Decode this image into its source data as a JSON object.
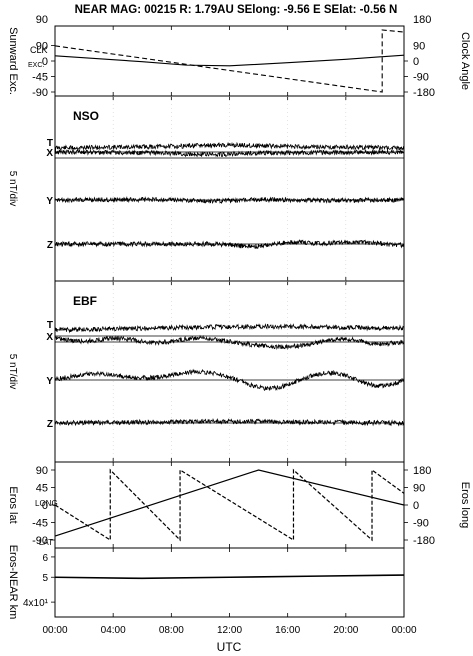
{
  "header": {
    "title": "NEAR MAG: 00215  R: 1.79AU  SElong:   -9.56 E  SElat:   -0.56 N"
  },
  "xaxis": {
    "label": "UTC",
    "ticks": [
      "00:00",
      "04:00",
      "08:00",
      "12:00",
      "16:00",
      "20:00",
      "00:00"
    ]
  },
  "panels": {
    "sunward": {
      "left_label": "Sunward Exc.",
      "right_label": "Clock Angle",
      "left_ticks": [
        "90",
        "45",
        "0",
        "-45",
        "-90"
      ],
      "right_ticks": [
        "180",
        "90",
        "0",
        "-90",
        "-180"
      ],
      "trace_labels": [
        "CLK",
        "EXC."
      ]
    },
    "nso": {
      "title": "NSO",
      "ylabel": "5 nT/div",
      "trace_labels": [
        "T",
        "X",
        "Y",
        "Z"
      ]
    },
    "ebf": {
      "title": "EBF",
      "ylabel": "5 nT/div",
      "trace_labels": [
        "T",
        "X",
        "Y",
        "Z"
      ]
    },
    "eros": {
      "left_label": "Eros lat",
      "right_label": "Eros long",
      "left_ticks": [
        "90",
        "45",
        "0",
        "-45",
        "-90"
      ],
      "right_ticks": [
        "180",
        "90",
        "0",
        "-90",
        "-180"
      ],
      "trace_labels": [
        "LONG",
        "LAT"
      ]
    },
    "distance": {
      "left_label": "Eros-NEAR km",
      "ticks": [
        "6",
        "5",
        "4x10¹"
      ]
    }
  },
  "chart_data": [
    {
      "type": "line",
      "title": "",
      "xlabel": "UTC",
      "xlim_hours": [
        0,
        24
      ],
      "y_left": {
        "label": "Sunward Exc.",
        "lim": [
          -90,
          90
        ]
      },
      "y_right": {
        "label": "Clock Angle",
        "lim": [
          -180,
          180
        ]
      },
      "series": [
        {
          "name": "CLK",
          "axis": "right",
          "style": "dashed",
          "x": [
            0,
            22.5,
            22.5,
            24
          ],
          "y": [
            88,
            -180,
            180,
            168
          ]
        },
        {
          "name": "EXC.",
          "axis": "left",
          "x": [
            0,
            6,
            9,
            12,
            16,
            20,
            24
          ],
          "y": [
            15,
            -2,
            -12,
            -14,
            -5,
            5,
            17
          ]
        }
      ]
    },
    {
      "type": "line",
      "title": "NSO",
      "ylabel": "5 nT/div",
      "xlim_hours": [
        0,
        24
      ],
      "series": [
        {
          "name": "T",
          "x": [
            0,
            8,
            12,
            16,
            24
          ],
          "y": [
            0,
            0.5,
            1.0,
            0.5,
            0
          ]
        },
        {
          "name": "X",
          "x": [
            0,
            8,
            10,
            14,
            18,
            24
          ],
          "y": [
            0,
            -0.3,
            -1.0,
            -0.2,
            -0.2,
            0
          ]
        },
        {
          "name": "Y",
          "x": [
            0,
            8,
            11,
            14,
            18,
            24
          ],
          "y": [
            0,
            0.2,
            -0.5,
            0.3,
            -0.2,
            0.1
          ]
        },
        {
          "name": "Z",
          "x": [
            0,
            12,
            14,
            16,
            18,
            20,
            24
          ],
          "y": [
            0,
            0,
            -1.5,
            1.5,
            -0.5,
            1.0,
            -0.5
          ]
        }
      ]
    },
    {
      "type": "line",
      "title": "EBF",
      "ylabel": "5 nT/div",
      "xlim_hours": [
        0,
        24
      ],
      "series": [
        {
          "name": "T",
          "x": [
            0,
            6,
            12,
            16,
            24
          ],
          "y": [
            0,
            0.5,
            1.0,
            1.0,
            0.5
          ]
        },
        {
          "name": "X",
          "x": [
            0,
            1.5,
            4,
            7,
            10,
            13,
            16.5,
            20,
            22.5,
            24
          ],
          "y": [
            0,
            -2.5,
            0,
            -2.5,
            0,
            -2.5,
            -3.5,
            0,
            -3.5,
            -1
          ]
        },
        {
          "name": "Y",
          "x": [
            0,
            3,
            6,
            10,
            12,
            15,
            17,
            20,
            22,
            24
          ],
          "y": [
            0,
            2.5,
            0,
            3,
            1,
            -4,
            1,
            3,
            -4,
            1
          ]
        },
        {
          "name": "Z",
          "x": [
            0,
            12,
            24
          ],
          "y": [
            0,
            0.5,
            0
          ]
        }
      ]
    },
    {
      "type": "line",
      "title": "",
      "xlim_hours": [
        0,
        24
      ],
      "y_left": {
        "label": "Eros lat",
        "lim": [
          -90,
          90
        ]
      },
      "y_right": {
        "label": "Eros long",
        "lim": [
          -180,
          180
        ]
      },
      "series": [
        {
          "name": "LAT",
          "axis": "left",
          "x": [
            0,
            14,
            24
          ],
          "y": [
            -80,
            90,
            0
          ]
        },
        {
          "name": "LONG",
          "axis": "right",
          "style": "dashed",
          "x": [
            0,
            3.8,
            3.8,
            8.6,
            8.6,
            16.4,
            16.4,
            21.8,
            21.8,
            24
          ],
          "y": [
            0,
            -180,
            180,
            -180,
            180,
            -180,
            180,
            -180,
            180,
            60
          ]
        }
      ]
    },
    {
      "type": "line",
      "title": "",
      "xlim_hours": [
        0,
        24
      ],
      "y": {
        "label": "Eros-NEAR km",
        "scale": "log",
        "lim": [
          35,
          65
        ]
      },
      "series": [
        {
          "name": "Eros-NEAR km",
          "x": [
            0,
            6,
            12,
            18,
            24
          ],
          "y": [
            50,
            49.5,
            50,
            50.5,
            51
          ]
        }
      ]
    }
  ]
}
